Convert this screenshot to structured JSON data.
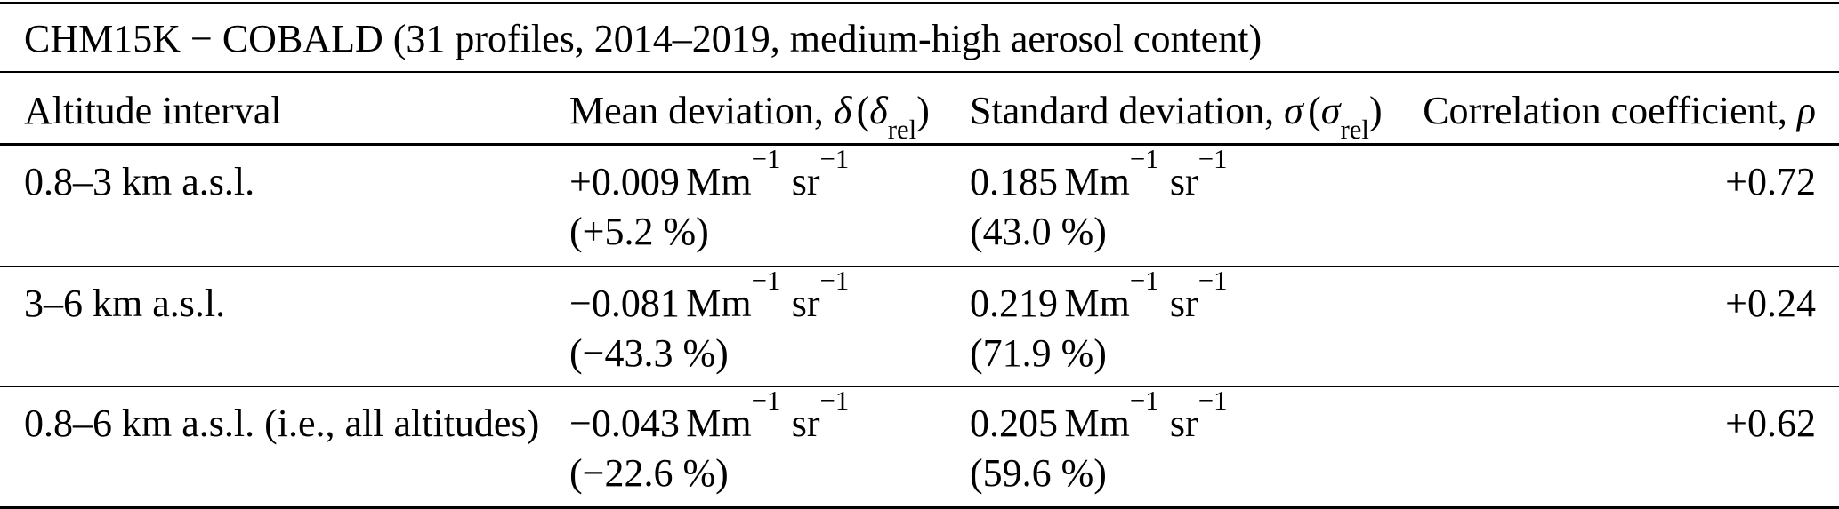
{
  "colors": {
    "background": "#ffffff",
    "text": "#000000",
    "rule": "#000000"
  },
  "table": {
    "title": "CHM15K − COBALD (31 profiles, 2014–2019, medium-high aerosol content)",
    "header": {
      "altitude": "Altitude interval",
      "mean": {
        "label": "Mean deviation, ",
        "sym": "δ",
        "open": "(",
        "sym2": "δ",
        "sub": "rel",
        "close": ")"
      },
      "std": {
        "label": "Standard deviation, ",
        "sym": "σ",
        "open": "(",
        "sym2": "σ",
        "sub": "rel",
        "close": ")"
      },
      "corr": {
        "label": "Correlation coefficient, ",
        "sym": "ρ"
      }
    },
    "rows": [
      {
        "altitude": "0.8–3 km a.s.l.",
        "mean": {
          "value": "+0.009",
          "unit1": "Mm",
          "sup1": "−1",
          "unit2": "sr",
          "sup2": "−1",
          "rel": "(+5.2 %)"
        },
        "std": {
          "value": "0.185",
          "unit1": "Mm",
          "sup1": "−1",
          "unit2": "sr",
          "sup2": "−1",
          "rel": "(43.0 %)"
        },
        "corr": "+0.72"
      },
      {
        "altitude": "3–6 km a.s.l.",
        "mean": {
          "value": "−0.081",
          "unit1": "Mm",
          "sup1": "−1",
          "unit2": "sr",
          "sup2": "−1",
          "rel": "(−43.3 %)"
        },
        "std": {
          "value": "0.219",
          "unit1": "Mm",
          "sup1": "−1",
          "unit2": "sr",
          "sup2": "−1",
          "rel": "(71.9 %)"
        },
        "corr": "+0.24"
      },
      {
        "altitude": "0.8–6 km a.s.l. (i.e., all altitudes)",
        "mean": {
          "value": "−0.043",
          "unit1": "Mm",
          "sup1": "−1",
          "unit2": "sr",
          "sup2": "−1",
          "rel": "(−22.6 %)"
        },
        "std": {
          "value": "0.205",
          "unit1": "Mm",
          "sup1": "−1",
          "unit2": "sr",
          "sup2": "−1",
          "rel": "(59.6 %)"
        },
        "corr": "+0.62"
      }
    ]
  }
}
